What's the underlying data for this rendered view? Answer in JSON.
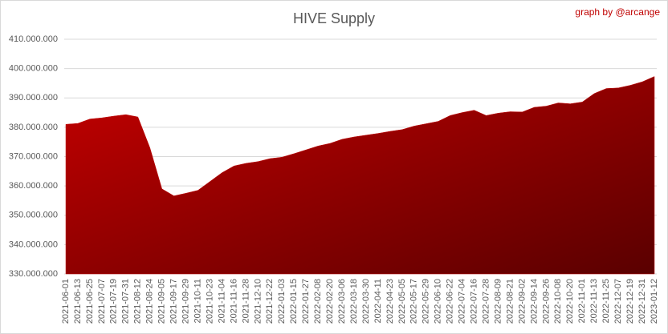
{
  "chart_data": {
    "type": "area",
    "title": "HIVE Supply",
    "annotation": "graph by @arcange",
    "categories": [
      "2021-06-01",
      "2021-06-13",
      "2021-06-25",
      "2021-07-07",
      "2021-07-19",
      "2021-07-31",
      "2021-08-12",
      "2021-08-24",
      "2021-09-05",
      "2021-09-17",
      "2021-09-29",
      "2021-10-11",
      "2021-10-23",
      "2021-11-04",
      "2021-11-16",
      "2021-11-28",
      "2021-12-10",
      "2021-12-22",
      "2022-01-03",
      "2022-01-15",
      "2022-01-27",
      "2022-02-08",
      "2022-02-20",
      "2022-03-06",
      "2022-03-18",
      "2022-03-30",
      "2022-04-11",
      "2022-04-23",
      "2022-05-05",
      "2022-05-17",
      "2022-05-29",
      "2022-06-10",
      "2022-06-22",
      "2022-07-04",
      "2022-07-16",
      "2022-07-28",
      "2022-08-09",
      "2022-08-21",
      "2022-09-02",
      "2022-09-14",
      "2022-09-26",
      "2022-10-08",
      "2022-10-20",
      "2022-11-01",
      "2022-11-13",
      "2022-11-25",
      "2022-12-07",
      "2022-12-19",
      "2022-12-31",
      "2023-01-12"
    ],
    "values": [
      381000000,
      381300000,
      382800000,
      383200000,
      383800000,
      384300000,
      383500000,
      373000000,
      359000000,
      356600000,
      357500000,
      358500000,
      361500000,
      364500000,
      366800000,
      367700000,
      368300000,
      369300000,
      369800000,
      371000000,
      372300000,
      373600000,
      374500000,
      375900000,
      376700000,
      377300000,
      377900000,
      378600000,
      379200000,
      380400000,
      381200000,
      382000000,
      384000000,
      385000000,
      385800000,
      384000000,
      384800000,
      385300000,
      385200000,
      386800000,
      387200000,
      388300000,
      388000000,
      388600000,
      391500000,
      393200000,
      393400000,
      394300000,
      395500000,
      397300000
    ],
    "color": "#c00000",
    "ylim": [
      330000000,
      410000000
    ],
    "yticks": [
      {
        "value": 330000000,
        "label": "330.000.000"
      },
      {
        "value": 340000000,
        "label": "340.000.000"
      },
      {
        "value": 350000000,
        "label": "350.000.000"
      },
      {
        "value": 360000000,
        "label": "360.000.000"
      },
      {
        "value": 370000000,
        "label": "370.000.000"
      },
      {
        "value": 380000000,
        "label": "380.000.000"
      },
      {
        "value": 390000000,
        "label": "390.000.000"
      },
      {
        "value": 400000000,
        "label": "400.000.000"
      },
      {
        "value": 410000000,
        "label": "410.000.000"
      }
    ],
    "grid": true
  }
}
